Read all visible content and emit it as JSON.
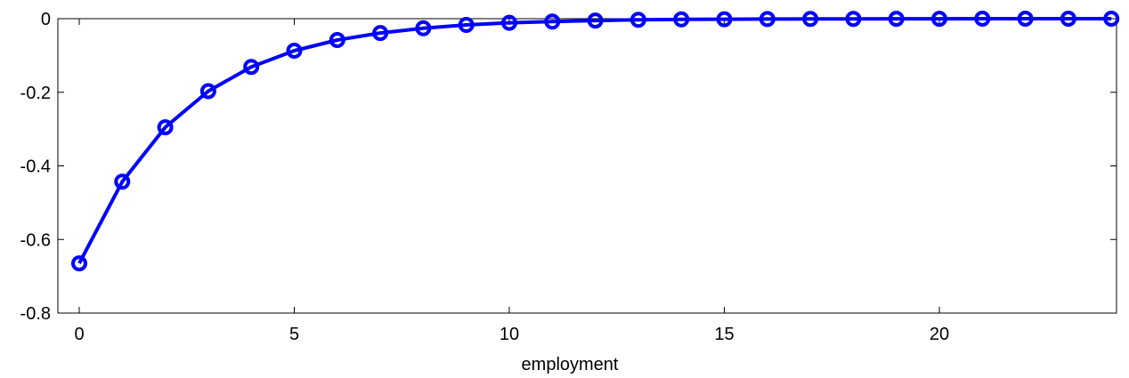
{
  "chart_data": {
    "type": "line",
    "title": "",
    "xlabel": "employment",
    "ylabel": "",
    "xlim": [
      -1,
      24
    ],
    "ylim": [
      -0.8,
      0
    ],
    "xticks": [
      0,
      5,
      10,
      15,
      20
    ],
    "xtick_labels": [
      "0",
      "5",
      "10",
      "15",
      "20"
    ],
    "yticks": [
      0,
      -0.2,
      -0.4,
      -0.6,
      -0.8
    ],
    "ytick_labels": [
      "0",
      "-0.2",
      "-0.4",
      "-0.6",
      "-0.8"
    ],
    "grid": false,
    "marker": "circle",
    "series": [
      {
        "color": "#0000ff",
        "x": [
          0,
          1,
          2,
          3,
          4,
          5,
          6,
          7,
          8,
          9,
          10,
          11,
          12,
          13,
          14,
          15,
          16,
          17,
          18,
          19,
          20,
          21,
          22,
          23,
          24
        ],
        "y": [
          -0.665,
          -0.443,
          -0.295,
          -0.197,
          -0.131,
          -0.087,
          -0.058,
          -0.039,
          -0.026,
          -0.017,
          -0.011,
          -0.008,
          -0.005,
          -0.003,
          -0.002,
          -0.0015,
          -0.001,
          -0.0007,
          -0.0005,
          -0.0003,
          -0.0002,
          -0.0001,
          -0.0001,
          0,
          0
        ]
      }
    ]
  }
}
